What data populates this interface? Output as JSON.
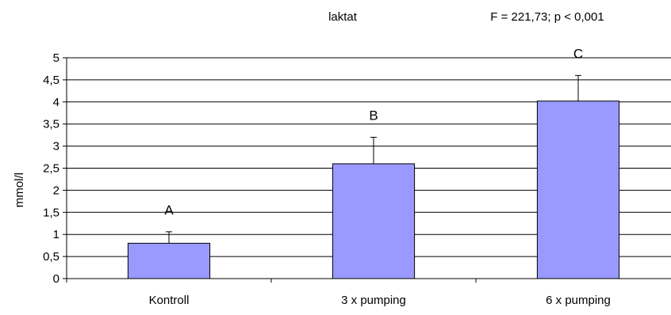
{
  "chart_data": {
    "type": "bar",
    "title": "laktat",
    "stat_text": "F = 221,73; p < 0,001",
    "ylabel": "mmol/l",
    "xlabel": "",
    "categories": [
      "Kontroll",
      "3 x pumping",
      "6 x pumping"
    ],
    "values": [
      0.8,
      2.6,
      4.02
    ],
    "error_upper": [
      0.26,
      0.6,
      0.58
    ],
    "group_letters": [
      "A",
      "B",
      "C"
    ],
    "ylim": [
      0,
      5
    ],
    "ytick_values": [
      0,
      0.5,
      1,
      1.5,
      2,
      2.5,
      3,
      3.5,
      4,
      4.5,
      5
    ],
    "ytick_labels": [
      "0",
      "0,5",
      "1",
      "1,5",
      "2",
      "2,5",
      "3",
      "3,5",
      "4",
      "4,5",
      "5"
    ],
    "grid": true,
    "legend": false,
    "colors": {
      "bar_fill": "#9999FF",
      "bar_stroke": "#000000",
      "grid": "#000000",
      "axis": "#000000"
    }
  }
}
